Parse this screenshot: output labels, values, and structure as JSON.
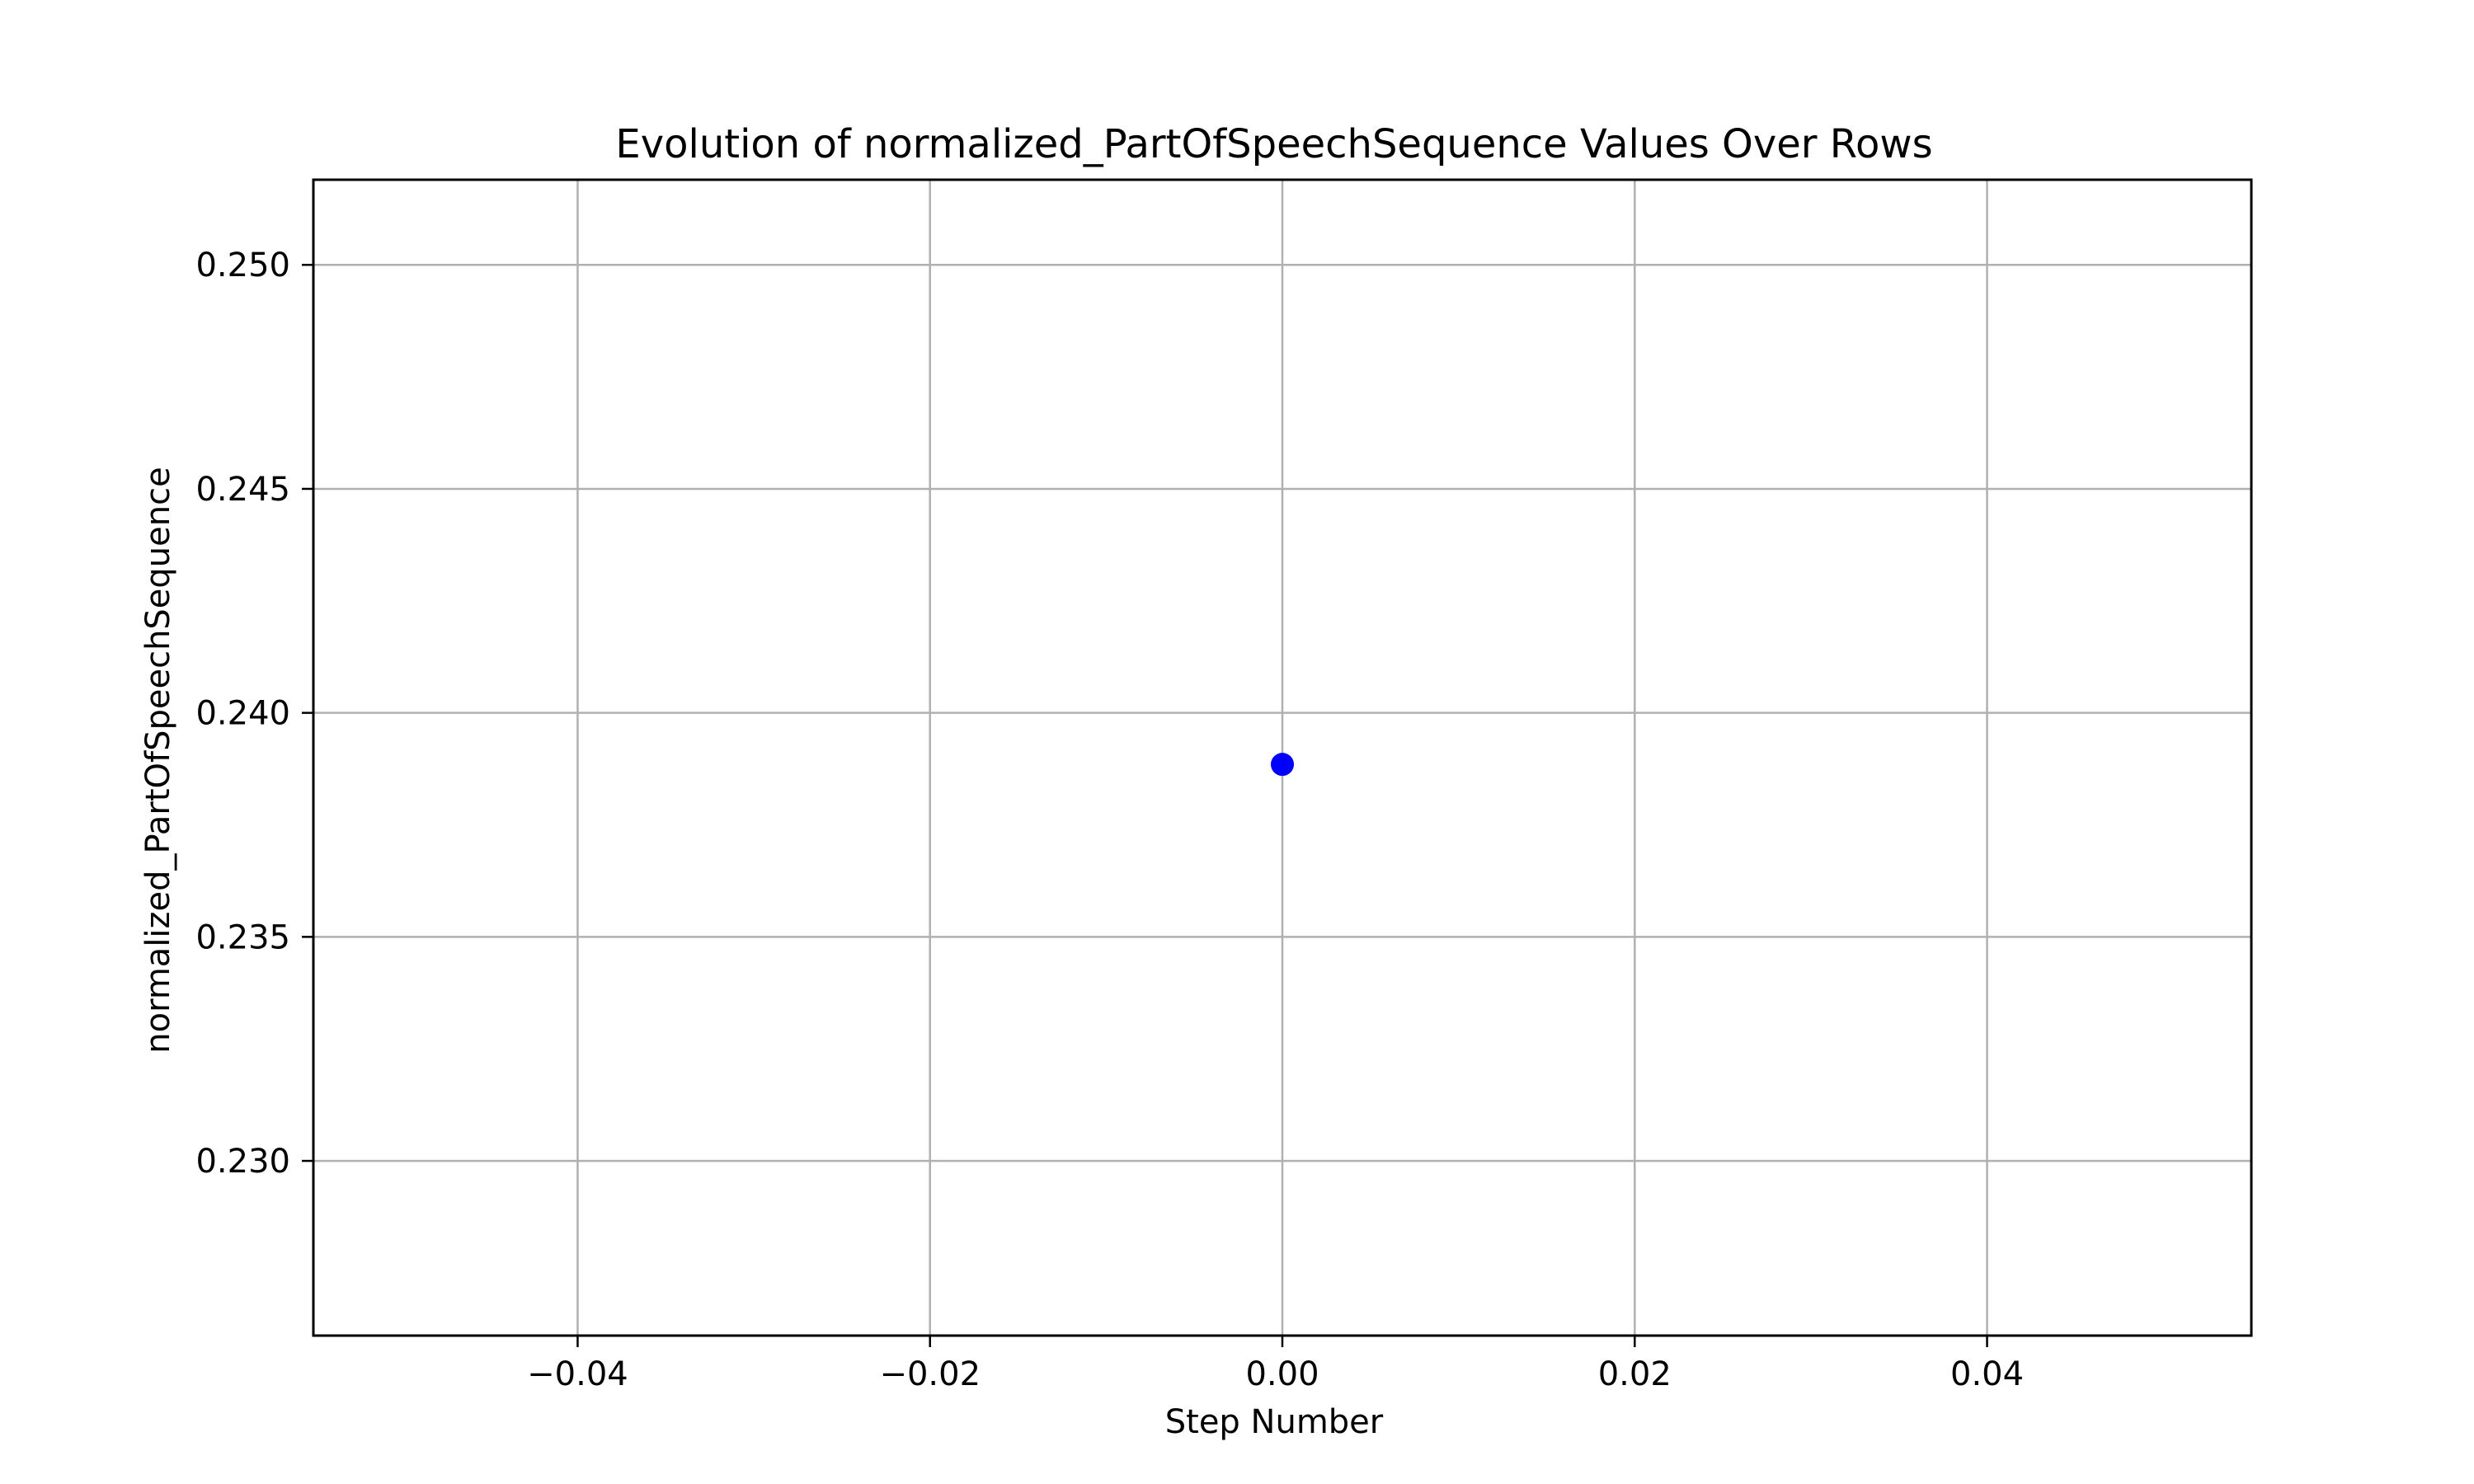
{
  "chart_data": {
    "type": "scatter",
    "title": "Evolution of normalized_PartOfSpeechSequence Values Over Rows",
    "xlabel": "Step Number",
    "ylabel": "normalized_PartOfSpeechSequence",
    "xlim": [
      -0.055,
      0.055
    ],
    "ylim": [
      0.2261,
      0.2519
    ],
    "xticks": [
      {
        "value": -0.04,
        "label": "−0.04"
      },
      {
        "value": -0.02,
        "label": "−0.02"
      },
      {
        "value": 0.0,
        "label": "0.00"
      },
      {
        "value": 0.02,
        "label": "0.02"
      },
      {
        "value": 0.04,
        "label": "0.04"
      }
    ],
    "yticks": [
      {
        "value": 0.23,
        "label": "0.230"
      },
      {
        "value": 0.235,
        "label": "0.235"
      },
      {
        "value": 0.24,
        "label": "0.240"
      },
      {
        "value": 0.245,
        "label": "0.245"
      },
      {
        "value": 0.25,
        "label": "0.250"
      }
    ],
    "grid": true,
    "series": [
      {
        "x": [
          0
        ],
        "y": [
          0.23885
        ],
        "color": "#0000ff",
        "marker": "circle"
      }
    ]
  }
}
